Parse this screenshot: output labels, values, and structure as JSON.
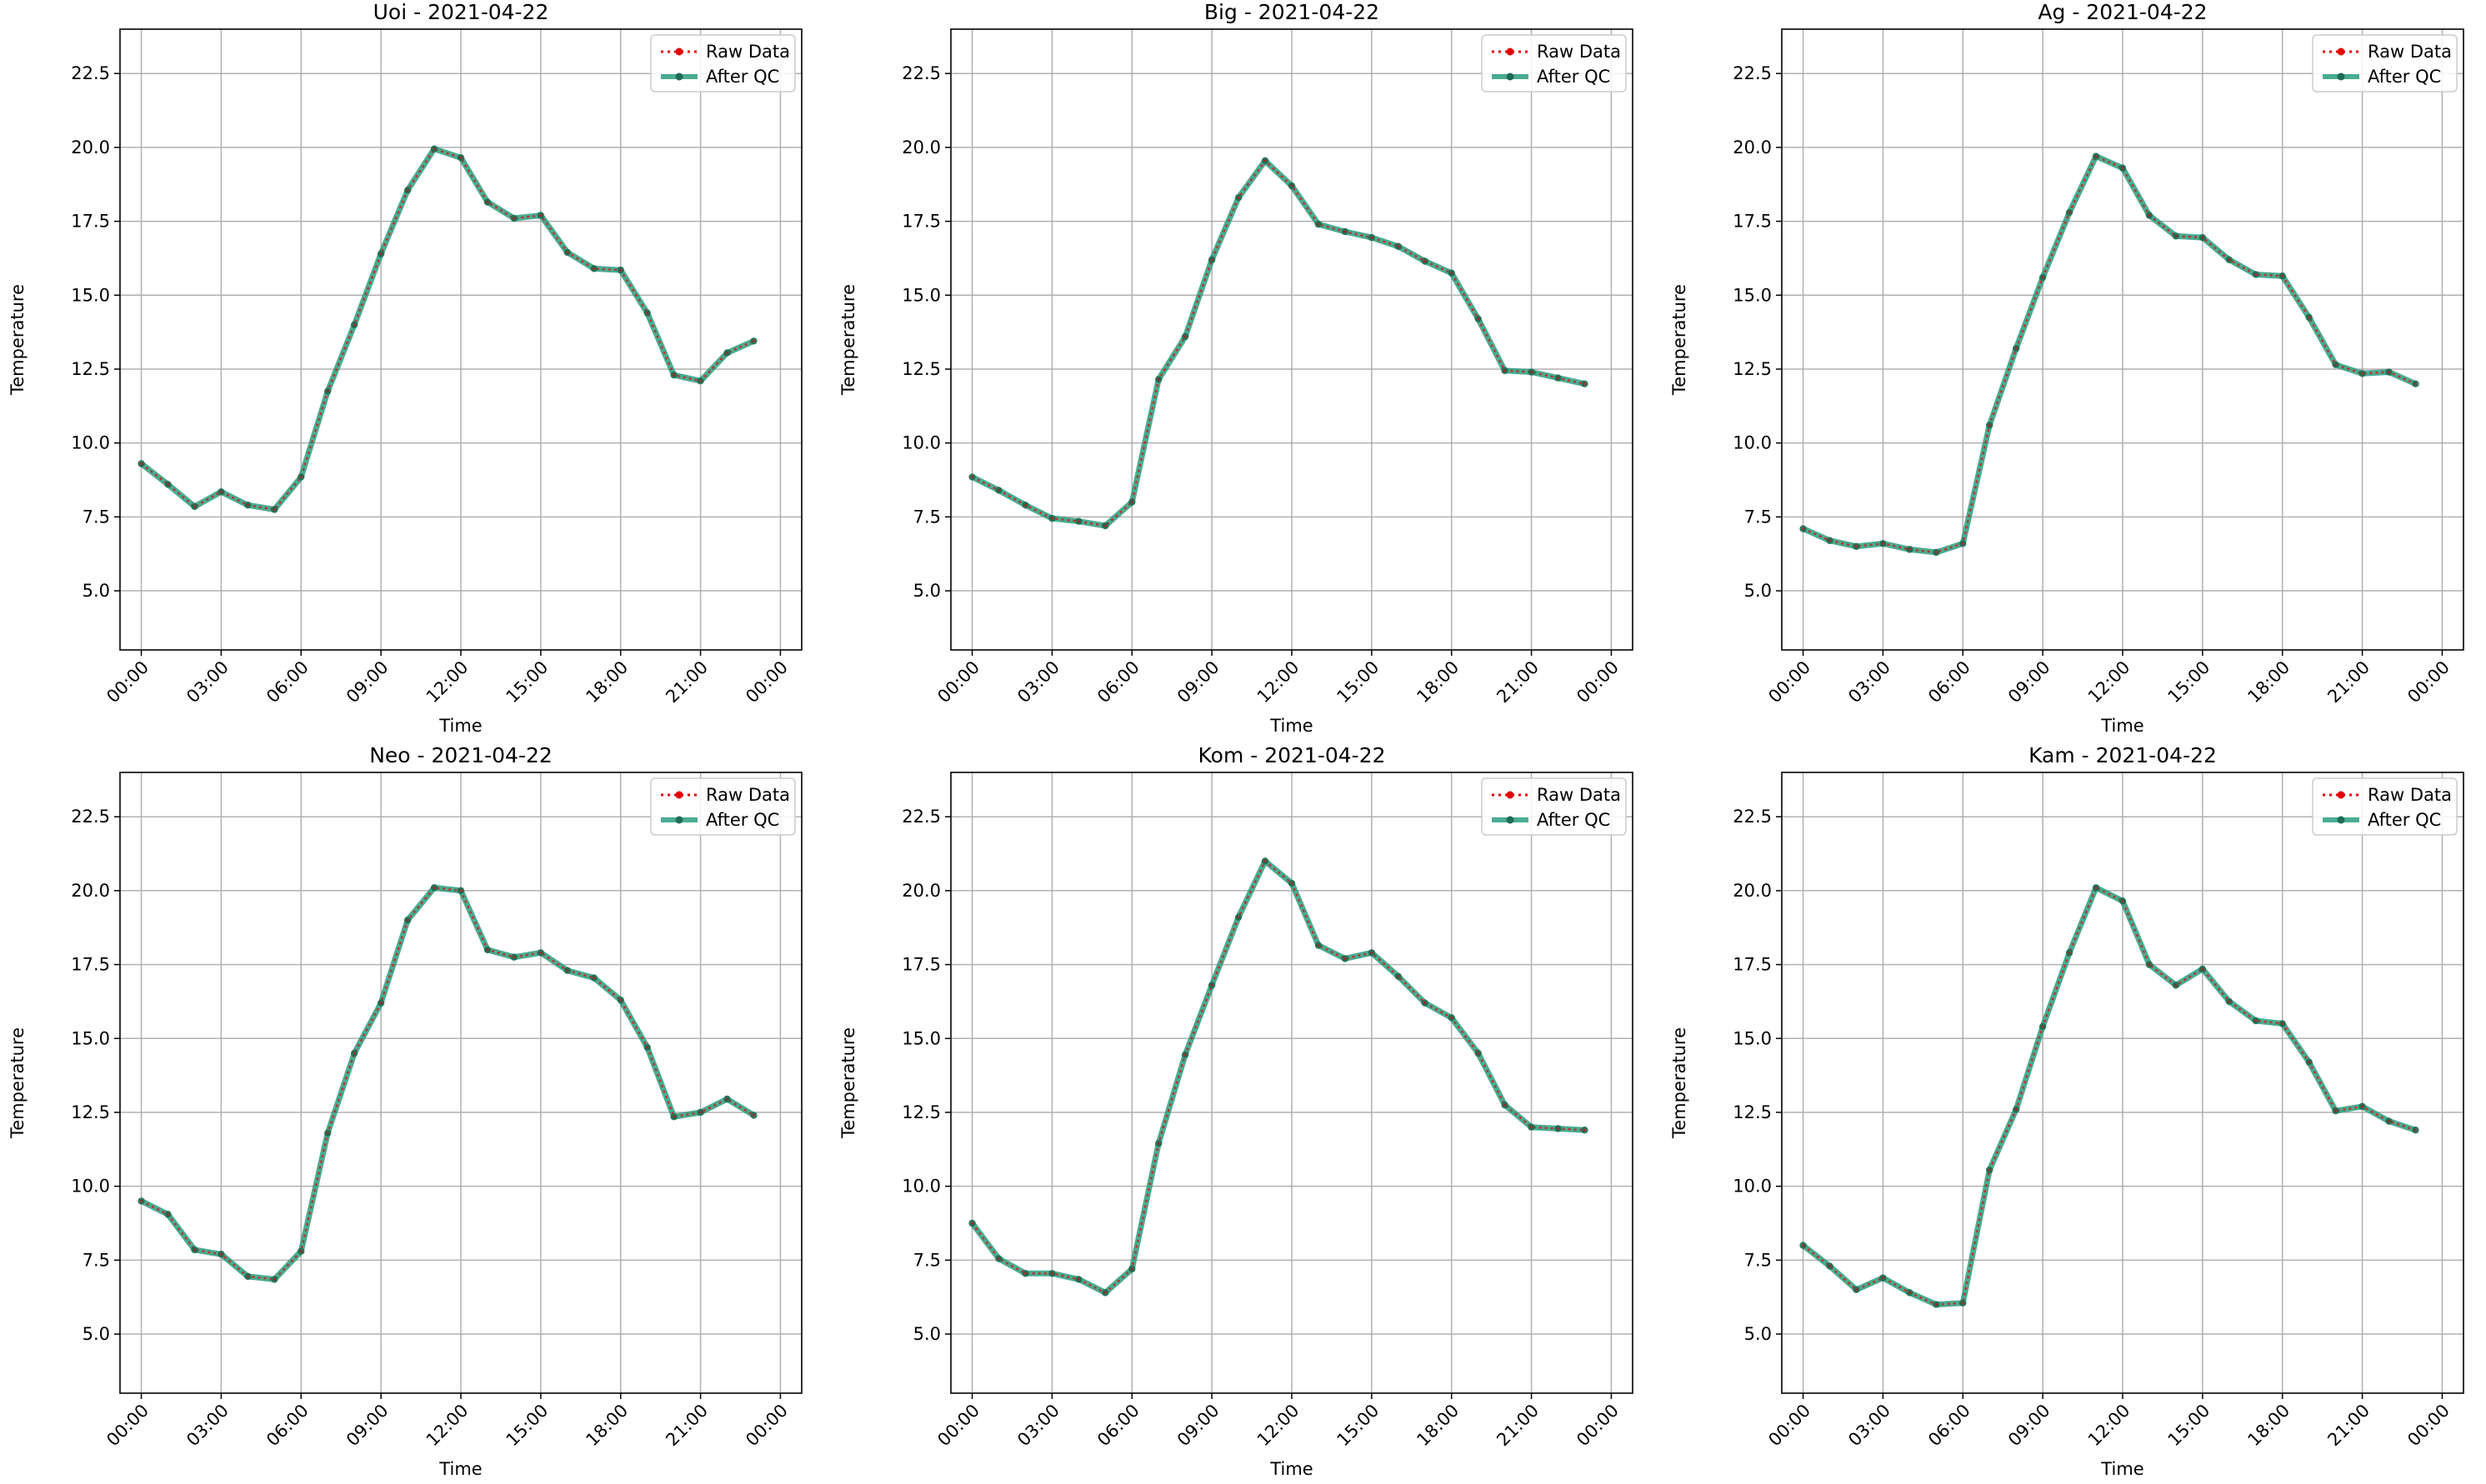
{
  "figure": {
    "xlabel": "Time",
    "ylabel": "Temperature",
    "legend": {
      "raw": "Raw Data",
      "qc": "After QC"
    },
    "colors": {
      "raw": "#e50000",
      "qc": "#2a9d7f",
      "qc_marker": "#1f6b54",
      "grid": "#b0b0b0",
      "frame": "#000000"
    }
  },
  "chart_data": [
    {
      "type": "line",
      "title": "Uoi - 2021-04-22",
      "xlabel": "Time",
      "ylabel": "Temperature",
      "ylim": [
        3.0,
        24.0
      ],
      "y_ticks": [
        "5.0",
        "7.5",
        "10.0",
        "12.5",
        "15.0",
        "17.5",
        "20.0",
        "22.5"
      ],
      "x_ticks": [
        "00:00",
        "03:00",
        "06:00",
        "09:00",
        "12:00",
        "15:00",
        "18:00",
        "21:00",
        "00:00"
      ],
      "grid": true,
      "legend_position": "top-right",
      "x": [
        "00:00",
        "01:00",
        "02:00",
        "03:00",
        "04:00",
        "05:00",
        "06:00",
        "07:00",
        "08:00",
        "09:00",
        "10:00",
        "11:00",
        "12:00",
        "13:00",
        "14:00",
        "15:00",
        "16:00",
        "17:00",
        "18:00",
        "19:00",
        "20:00",
        "21:00",
        "22:00",
        "23:00"
      ],
      "series": [
        {
          "name": "Raw Data",
          "values": [
            9.3,
            8.6,
            7.85,
            8.35,
            7.9,
            7.75,
            8.85,
            11.75,
            14.0,
            16.4,
            18.55,
            19.95,
            19.65,
            18.15,
            17.6,
            17.7,
            16.45,
            15.9,
            15.85,
            14.4,
            12.3,
            12.1,
            13.05,
            13.45
          ]
        },
        {
          "name": "After QC",
          "values": [
            9.3,
            8.6,
            7.85,
            8.35,
            7.9,
            7.75,
            8.85,
            11.75,
            14.0,
            16.4,
            18.55,
            19.95,
            19.65,
            18.15,
            17.6,
            17.7,
            16.45,
            15.9,
            15.85,
            14.4,
            12.3,
            12.1,
            13.05,
            13.45
          ]
        }
      ]
    },
    {
      "type": "line",
      "title": "Big - 2021-04-22",
      "xlabel": "Time",
      "ylabel": "Temperature",
      "ylim": [
        3.0,
        24.0
      ],
      "y_ticks": [
        "5.0",
        "7.5",
        "10.0",
        "12.5",
        "15.0",
        "17.5",
        "20.0",
        "22.5"
      ],
      "x_ticks": [
        "00:00",
        "03:00",
        "06:00",
        "09:00",
        "12:00",
        "15:00",
        "18:00",
        "21:00",
        "00:00"
      ],
      "grid": true,
      "legend_position": "top-right",
      "x": [
        "00:00",
        "01:00",
        "02:00",
        "03:00",
        "04:00",
        "05:00",
        "06:00",
        "07:00",
        "08:00",
        "09:00",
        "10:00",
        "11:00",
        "12:00",
        "13:00",
        "14:00",
        "15:00",
        "16:00",
        "17:00",
        "18:00",
        "19:00",
        "20:00",
        "21:00",
        "22:00",
        "23:00"
      ],
      "series": [
        {
          "name": "Raw Data",
          "values": [
            8.85,
            8.4,
            7.9,
            7.45,
            7.35,
            7.2,
            8.0,
            12.15,
            13.6,
            16.2,
            18.3,
            19.55,
            18.7,
            17.4,
            17.15,
            16.95,
            16.65,
            16.15,
            15.75,
            14.2,
            12.45,
            12.4,
            12.2,
            12.0
          ]
        },
        {
          "name": "After QC",
          "values": [
            8.85,
            8.4,
            7.9,
            7.45,
            7.35,
            7.2,
            8.0,
            12.15,
            13.6,
            16.2,
            18.3,
            19.55,
            18.7,
            17.4,
            17.15,
            16.95,
            16.65,
            16.15,
            15.75,
            14.2,
            12.45,
            12.4,
            12.2,
            12.0
          ]
        }
      ]
    },
    {
      "type": "line",
      "title": "Ag - 2021-04-22",
      "xlabel": "Time",
      "ylabel": "Temperature",
      "ylim": [
        3.0,
        24.0
      ],
      "y_ticks": [
        "5.0",
        "7.5",
        "10.0",
        "12.5",
        "15.0",
        "17.5",
        "20.0",
        "22.5"
      ],
      "x_ticks": [
        "00:00",
        "03:00",
        "06:00",
        "09:00",
        "12:00",
        "15:00",
        "18:00",
        "21:00",
        "00:00"
      ],
      "grid": true,
      "legend_position": "top-right",
      "x": [
        "00:00",
        "01:00",
        "02:00",
        "03:00",
        "04:00",
        "05:00",
        "06:00",
        "07:00",
        "08:00",
        "09:00",
        "10:00",
        "11:00",
        "12:00",
        "13:00",
        "14:00",
        "15:00",
        "16:00",
        "17:00",
        "18:00",
        "19:00",
        "20:00",
        "21:00",
        "22:00",
        "23:00"
      ],
      "series": [
        {
          "name": "Raw Data",
          "values": [
            7.1,
            6.7,
            6.5,
            6.6,
            6.4,
            6.3,
            6.6,
            10.6,
            13.2,
            15.6,
            17.8,
            19.7,
            19.3,
            17.7,
            17.0,
            16.95,
            16.2,
            15.7,
            15.65,
            14.25,
            12.65,
            12.35,
            12.4,
            12.0
          ]
        },
        {
          "name": "After QC",
          "values": [
            7.1,
            6.7,
            6.5,
            6.6,
            6.4,
            6.3,
            6.6,
            10.6,
            13.2,
            15.6,
            17.8,
            19.7,
            19.3,
            17.7,
            17.0,
            16.95,
            16.2,
            15.7,
            15.65,
            14.25,
            12.65,
            12.35,
            12.4,
            12.0
          ]
        }
      ]
    },
    {
      "type": "line",
      "title": "Neo - 2021-04-22",
      "xlabel": "Time",
      "ylabel": "Temperature",
      "ylim": [
        3.0,
        24.0
      ],
      "y_ticks": [
        "5.0",
        "7.5",
        "10.0",
        "12.5",
        "15.0",
        "17.5",
        "20.0",
        "22.5"
      ],
      "x_ticks": [
        "00:00",
        "03:00",
        "06:00",
        "09:00",
        "12:00",
        "15:00",
        "18:00",
        "21:00",
        "00:00"
      ],
      "grid": true,
      "legend_position": "top-right",
      "x": [
        "00:00",
        "01:00",
        "02:00",
        "03:00",
        "04:00",
        "05:00",
        "06:00",
        "07:00",
        "08:00",
        "09:00",
        "10:00",
        "11:00",
        "12:00",
        "13:00",
        "14:00",
        "15:00",
        "16:00",
        "17:00",
        "18:00",
        "19:00",
        "20:00",
        "21:00",
        "22:00",
        "23:00"
      ],
      "series": [
        {
          "name": "Raw Data",
          "values": [
            9.5,
            9.05,
            7.85,
            7.7,
            6.95,
            6.85,
            7.8,
            11.8,
            14.5,
            16.2,
            19.0,
            20.1,
            20.0,
            18.0,
            17.75,
            17.9,
            17.3,
            17.05,
            16.3,
            14.7,
            12.35,
            12.5,
            12.95,
            12.4
          ]
        },
        {
          "name": "After QC",
          "values": [
            9.5,
            9.05,
            7.85,
            7.7,
            6.95,
            6.85,
            7.8,
            11.8,
            14.5,
            16.2,
            19.0,
            20.1,
            20.0,
            18.0,
            17.75,
            17.9,
            17.3,
            17.05,
            16.3,
            14.7,
            12.35,
            12.5,
            12.95,
            12.4
          ]
        }
      ]
    },
    {
      "type": "line",
      "title": "Kom - 2021-04-22",
      "xlabel": "Time",
      "ylabel": "Temperature",
      "ylim": [
        3.0,
        24.0
      ],
      "y_ticks": [
        "5.0",
        "7.5",
        "10.0",
        "12.5",
        "15.0",
        "17.5",
        "20.0",
        "22.5"
      ],
      "x_ticks": [
        "00:00",
        "03:00",
        "06:00",
        "09:00",
        "12:00",
        "15:00",
        "18:00",
        "21:00",
        "00:00"
      ],
      "grid": true,
      "legend_position": "top-right",
      "x": [
        "00:00",
        "01:00",
        "02:00",
        "03:00",
        "04:00",
        "05:00",
        "06:00",
        "07:00",
        "08:00",
        "09:00",
        "10:00",
        "11:00",
        "12:00",
        "13:00",
        "14:00",
        "15:00",
        "16:00",
        "17:00",
        "18:00",
        "19:00",
        "20:00",
        "21:00",
        "22:00",
        "23:00"
      ],
      "series": [
        {
          "name": "Raw Data",
          "values": [
            8.75,
            7.55,
            7.05,
            7.05,
            6.85,
            6.4,
            7.2,
            11.45,
            14.45,
            16.8,
            19.1,
            21.0,
            20.25,
            18.15,
            17.7,
            17.9,
            17.1,
            16.2,
            15.7,
            14.5,
            12.75,
            12.0,
            11.95,
            11.9
          ]
        },
        {
          "name": "After QC",
          "values": [
            8.75,
            7.55,
            7.05,
            7.05,
            6.85,
            6.4,
            7.2,
            11.45,
            14.45,
            16.8,
            19.1,
            21.0,
            20.25,
            18.15,
            17.7,
            17.9,
            17.1,
            16.2,
            15.7,
            14.5,
            12.75,
            12.0,
            11.95,
            11.9
          ]
        }
      ]
    },
    {
      "type": "line",
      "title": "Kam - 2021-04-22",
      "xlabel": "Time",
      "ylabel": "Temperature",
      "ylim": [
        3.0,
        24.0
      ],
      "y_ticks": [
        "5.0",
        "7.5",
        "10.0",
        "12.5",
        "15.0",
        "17.5",
        "20.0",
        "22.5"
      ],
      "x_ticks": [
        "00:00",
        "03:00",
        "06:00",
        "09:00",
        "12:00",
        "15:00",
        "18:00",
        "21:00",
        "00:00"
      ],
      "grid": true,
      "legend_position": "top-right",
      "x": [
        "00:00",
        "01:00",
        "02:00",
        "03:00",
        "04:00",
        "05:00",
        "06:00",
        "07:00",
        "08:00",
        "09:00",
        "10:00",
        "11:00",
        "12:00",
        "13:00",
        "14:00",
        "15:00",
        "16:00",
        "17:00",
        "18:00",
        "19:00",
        "20:00",
        "21:00",
        "22:00",
        "23:00"
      ],
      "series": [
        {
          "name": "Raw Data",
          "values": [
            8.0,
            7.3,
            6.5,
            6.9,
            6.4,
            6.0,
            6.05,
            10.55,
            12.6,
            15.4,
            17.9,
            20.1,
            19.65,
            17.5,
            16.8,
            17.35,
            16.25,
            15.6,
            15.5,
            14.2,
            12.55,
            12.7,
            12.2,
            11.9
          ]
        },
        {
          "name": "After QC",
          "values": [
            8.0,
            7.3,
            6.5,
            6.9,
            6.4,
            6.0,
            6.05,
            10.55,
            12.6,
            15.4,
            17.9,
            20.1,
            19.65,
            17.5,
            16.8,
            17.35,
            16.25,
            15.6,
            15.5,
            14.2,
            12.55,
            12.7,
            12.2,
            11.9
          ]
        }
      ]
    }
  ]
}
